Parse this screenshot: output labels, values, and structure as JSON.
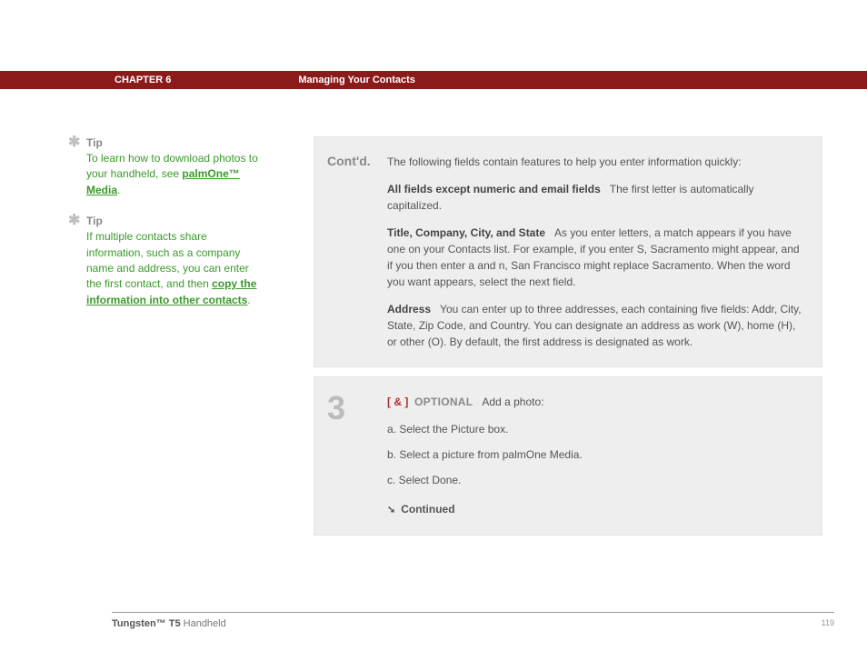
{
  "header": {
    "chapter": "CHAPTER 6",
    "title": "Managing Your Contacts"
  },
  "sidebar": {
    "tips": [
      {
        "heading": "Tip",
        "pre": "To learn how to download photos to your handheld, see ",
        "link": "palmOne™ Media",
        "post": "."
      },
      {
        "heading": "Tip",
        "pre": "If multiple contacts share information, such as a company name and address, you can enter the first contact, and then ",
        "link": "copy the information into other contacts",
        "post": "."
      }
    ]
  },
  "content": {
    "block1": {
      "label": "Cont'd.",
      "intro": "The following fields contain features to help you enter information quickly:",
      "fields": [
        {
          "lead": "All fields except numeric and email fields",
          "body": "The first letter is automatically capitalized."
        },
        {
          "lead": "Title, Company, City, and State",
          "body": "As you enter letters, a match appears if you have one on your Contacts list. For example, if you enter S, Sacramento might appear, and if you then enter a and n, San Francisco might replace Sacramento. When the word you want appears, select the next field."
        },
        {
          "lead": "Address",
          "body": "You can enter up to three addresses, each containing five fields: Addr, City, State, Zip Code, and Country. You can designate an address as work (W), home (H), or other (O). By default, the first address is designated as work."
        }
      ]
    },
    "block2": {
      "num": "3",
      "opt_brackets": "[ & ]",
      "opt_label": "OPTIONAL",
      "opt_tail": "Add a photo:",
      "steps": [
        "a.  Select the Picture box.",
        "b.  Select a picture from palmOne Media.",
        "c.  Select Done."
      ],
      "continued": "Continued"
    }
  },
  "footer": {
    "product_bold": "Tungsten™ T5",
    "product_rest": " Handheld",
    "page": "119"
  },
  "colors": {
    "header_bg": "#8b1a1a",
    "tip_green": "#3a9a2a",
    "box_bg": "#eeeeee"
  }
}
